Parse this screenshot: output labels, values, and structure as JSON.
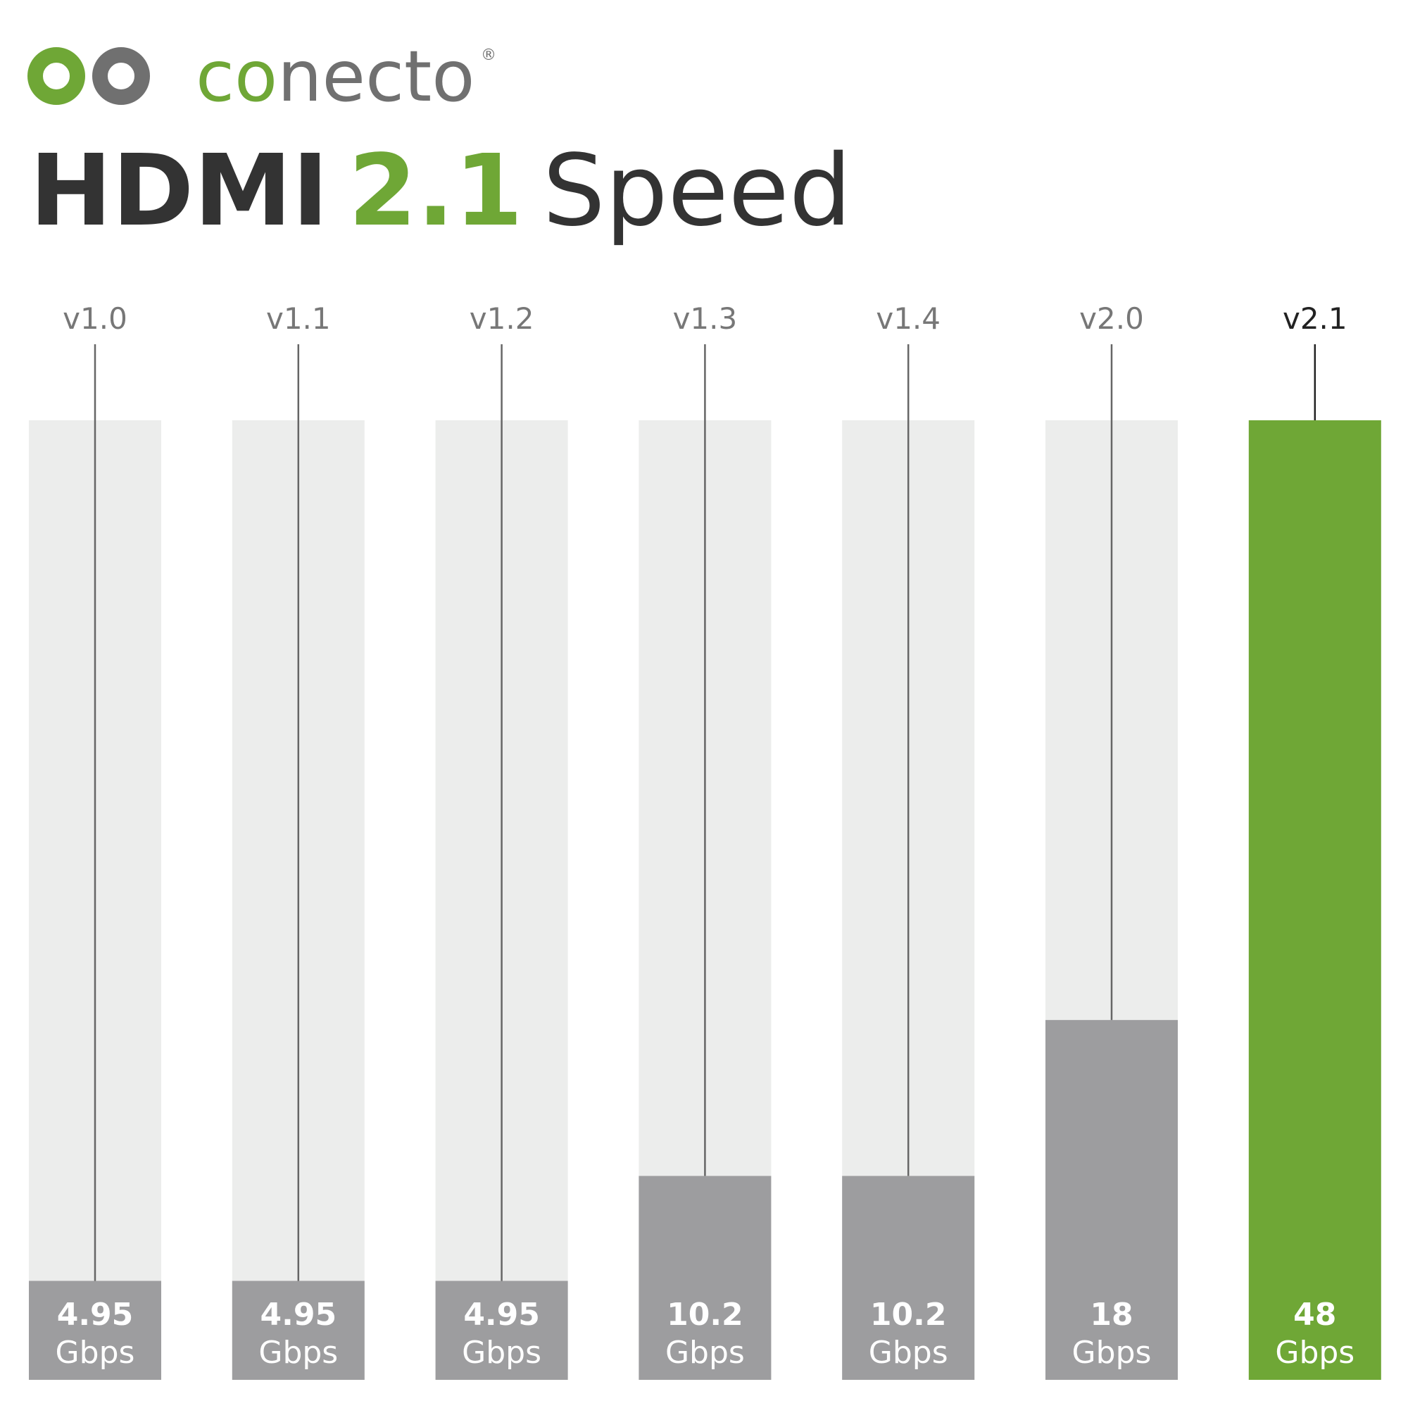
{
  "logo": {
    "parts": [
      "co",
      "necto"
    ],
    "mark": "®"
  },
  "chart_data": {
    "type": "bar",
    "title": [
      "HDMI",
      "2.1",
      "Speed"
    ],
    "title_colors": [
      "#333333",
      "#6fa736",
      "#333333"
    ],
    "categories": [
      "v1.0",
      "v1.1",
      "v1.2",
      "v1.3",
      "v1.4",
      "v2.0",
      "v2.1"
    ],
    "values": [
      4.95,
      4.95,
      4.95,
      10.2,
      10.2,
      18,
      48
    ],
    "unit": "Gbps",
    "colors": [
      "#9d9d9f",
      "#9d9d9f",
      "#9d9d9f",
      "#9d9d9f",
      "#9d9d9f",
      "#9d9d9f",
      "#6fa736"
    ],
    "label_colors": [
      "#777777",
      "#777777",
      "#777777",
      "#777777",
      "#777777",
      "#777777",
      "#222222"
    ],
    "track_color": "#ecedec",
    "ylim": [
      0,
      48
    ]
  }
}
